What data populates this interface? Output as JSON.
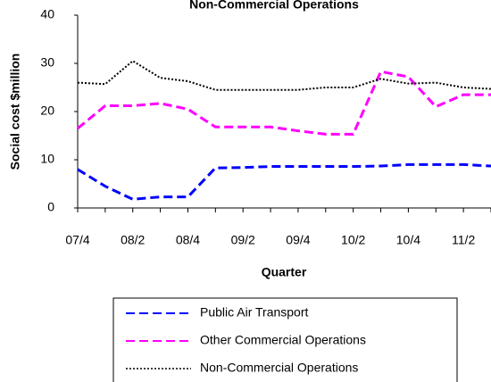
{
  "chart_data": {
    "type": "line",
    "title": "Non-Commercial Operations",
    "x_label": "Quarter",
    "y_label": "Social cost  $million",
    "categories": [
      "07/4",
      null,
      "08/2",
      null,
      "08/4",
      null,
      "09/2",
      null,
      "09/4",
      null,
      "10/2",
      null,
      "10/4",
      null,
      "11/2",
      null
    ],
    "ylim": [
      0,
      40
    ],
    "yticks": [
      0,
      10,
      20,
      30,
      40
    ],
    "grid": false,
    "series": [
      {
        "name": "Public Air Transport",
        "color": "#0000ff",
        "dash": "dashed",
        "values": [
          8,
          4.5,
          1.8,
          2.3,
          2.3,
          8.3,
          8.4,
          8.6,
          8.6,
          8.6,
          8.6,
          8.7,
          9,
          9,
          9,
          8.7
        ]
      },
      {
        "name": "Other Commercial Operations",
        "color": "#ff00ff",
        "dash": "dashed",
        "values": [
          16.5,
          21.2,
          21.2,
          21.7,
          20.5,
          16.8,
          16.8,
          16.8,
          16,
          15.3,
          15.3,
          28.3,
          27.2,
          21,
          23.5,
          23.5
        ]
      },
      {
        "name": "Non-Commercial Operations",
        "color": "#000000",
        "dash": "dotted",
        "values": [
          26,
          25.7,
          30.5,
          27,
          26.3,
          24.5,
          24.5,
          24.5,
          24.5,
          25,
          25,
          26.8,
          25.8,
          26,
          25,
          24.7
        ]
      }
    ]
  }
}
